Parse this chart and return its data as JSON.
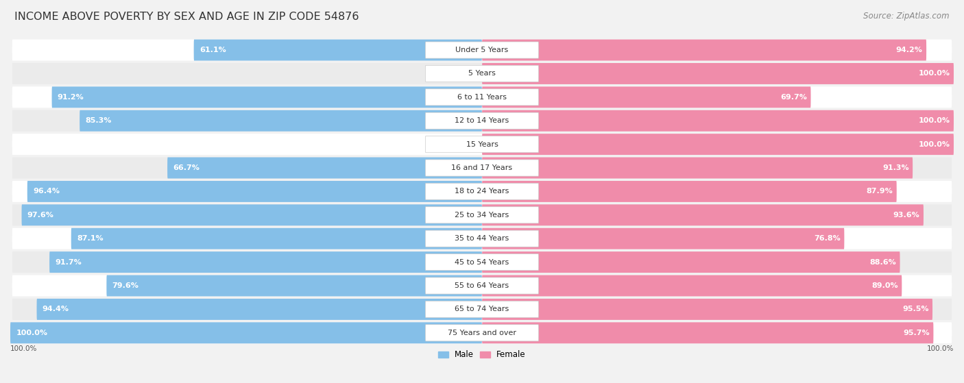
{
  "title": "INCOME ABOVE POVERTY BY SEX AND AGE IN ZIP CODE 54876",
  "source": "Source: ZipAtlas.com",
  "categories": [
    "Under 5 Years",
    "5 Years",
    "6 to 11 Years",
    "12 to 14 Years",
    "15 Years",
    "16 and 17 Years",
    "18 to 24 Years",
    "25 to 34 Years",
    "35 to 44 Years",
    "45 to 54 Years",
    "55 to 64 Years",
    "65 to 74 Years",
    "75 Years and over"
  ],
  "male_values": [
    61.1,
    0.0,
    91.2,
    85.3,
    0.0,
    66.7,
    96.4,
    97.6,
    87.1,
    91.7,
    79.6,
    94.4,
    100.0
  ],
  "female_values": [
    94.2,
    100.0,
    69.7,
    100.0,
    100.0,
    91.3,
    87.9,
    93.6,
    76.8,
    88.6,
    89.0,
    95.5,
    95.7
  ],
  "male_color": "#85bfe8",
  "female_color": "#f08caa",
  "male_color_light": "#b8d9f2",
  "female_color_light": "#f5b8ca",
  "male_label": "Male",
  "female_label": "Female",
  "bg_color": "#f2f2f2",
  "row_color_odd": "#ffffff",
  "row_color_even": "#ebebeb",
  "title_fontsize": 11.5,
  "label_fontsize": 8.5,
  "value_fontsize": 8.0,
  "source_fontsize": 8.5
}
